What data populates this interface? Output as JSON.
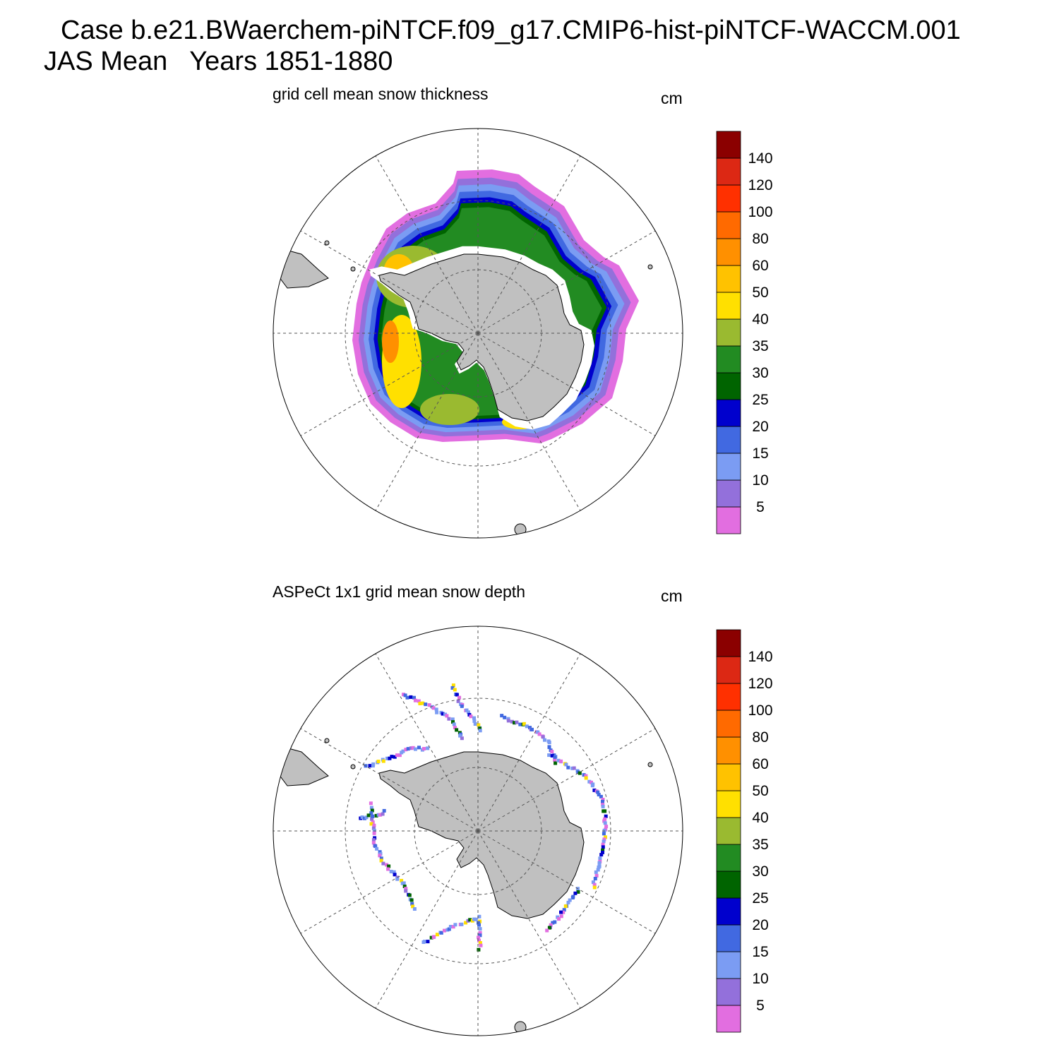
{
  "header": {
    "case_line": "Case b.e21.BWaerchem-piNTCF.f09_g17.CMIP6-hist-piNTCF-WACCM.001",
    "season_line": "JAS Mean   Years 1851-1880"
  },
  "panels": [
    {
      "title": "grid cell mean snow thickness",
      "units": "cm"
    },
    {
      "title": "ASPeCt 1x1 grid mean snow depth",
      "units": "cm"
    }
  ],
  "colorbar": {
    "labels": [
      "5",
      "10",
      "15",
      "20",
      "25",
      "30",
      "35",
      "40",
      "50",
      "60",
      "80",
      "100",
      "120",
      "140"
    ],
    "colors": [
      "#e26ee0",
      "#9370db",
      "#7b9cf3",
      "#4169e1",
      "#0000cd",
      "#006400",
      "#228b22",
      "#9aba30",
      "#ffe000",
      "#ffc200",
      "#ff9000",
      "#ff6a00",
      "#ff3000",
      "#dc2814",
      "#8b0000"
    ]
  },
  "map_style": {
    "land_color": "#c0c0c0",
    "graticule_color": "#555555"
  }
}
